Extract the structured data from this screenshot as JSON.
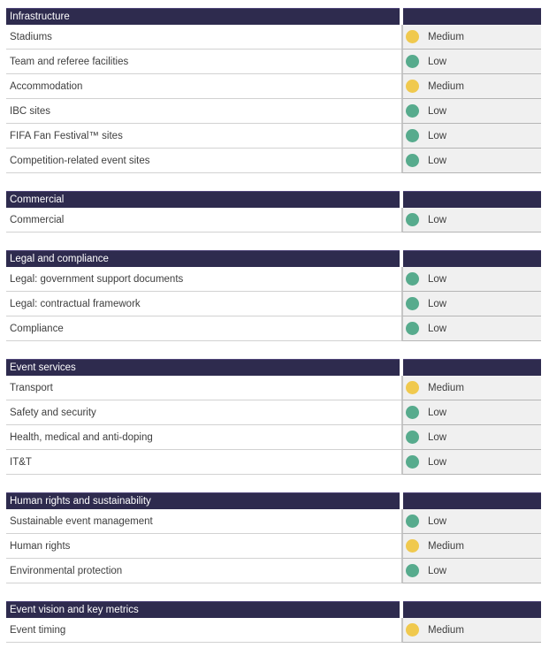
{
  "colors": {
    "header_bg": "#2e2b4e",
    "header_text": "#ffffff",
    "status_low": "#57ab8d",
    "status_medium": "#f0c94e",
    "right_cell_bg": "#f0f0f0"
  },
  "sections": [
    {
      "title": "Infrastructure",
      "rows": [
        {
          "label": "Stadiums",
          "status": "Medium"
        },
        {
          "label": "Team and referee facilities",
          "status": "Low"
        },
        {
          "label": "Accommodation",
          "status": "Medium"
        },
        {
          "label": "IBC sites",
          "status": "Low"
        },
        {
          "label": "FIFA Fan Festival™ sites",
          "status": "Low"
        },
        {
          "label": "Competition-related event sites",
          "status": "Low"
        }
      ]
    },
    {
      "title": "Commercial",
      "rows": [
        {
          "label": "Commercial",
          "status": "Low"
        }
      ]
    },
    {
      "title": "Legal and compliance",
      "rows": [
        {
          "label": "Legal: government support documents",
          "status": "Low"
        },
        {
          "label": "Legal: contractual framework",
          "status": "Low"
        },
        {
          "label": "Compliance",
          "status": "Low"
        }
      ]
    },
    {
      "title": "Event services",
      "rows": [
        {
          "label": "Transport",
          "status": "Medium"
        },
        {
          "label": "Safety and security",
          "status": "Low"
        },
        {
          "label": "Health, medical and anti-doping",
          "status": "Low"
        },
        {
          "label": "IT&T",
          "status": "Low"
        }
      ]
    },
    {
      "title": "Human rights and sustainability",
      "rows": [
        {
          "label": "Sustainable event management",
          "status": "Low"
        },
        {
          "label": "Human rights",
          "status": "Medium"
        },
        {
          "label": "Environmental protection",
          "status": "Low"
        }
      ]
    },
    {
      "title": "Event vision and key metrics",
      "rows": [
        {
          "label": "Event timing",
          "status": "Medium"
        }
      ]
    }
  ]
}
